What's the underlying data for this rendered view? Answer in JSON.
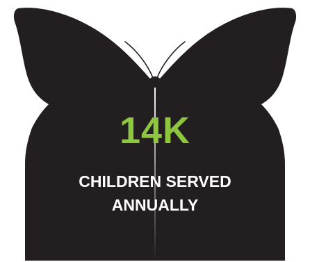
{
  "infographic": {
    "stat_value": "14K",
    "caption_line_1": "CHILDREN SERVED",
    "caption_line_2": "ANNUALLY"
  },
  "colors": {
    "shape": "#231f20",
    "accent": "#8dc63f",
    "caption": "#ffffff",
    "background": "#ffffff"
  },
  "icons": {
    "shape": "butterfly-icon"
  }
}
